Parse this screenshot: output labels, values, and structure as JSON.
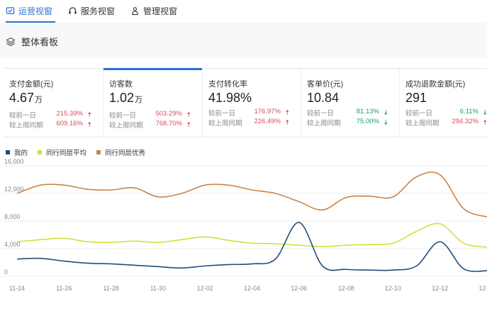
{
  "tabs": [
    {
      "label": "运营视窗",
      "icon": "ops-view-icon",
      "active": true
    },
    {
      "label": "服务视窗",
      "icon": "headset-icon",
      "active": false
    },
    {
      "label": "管理视窗",
      "icon": "manage-icon",
      "active": false
    }
  ],
  "section": {
    "title": "整体看板",
    "icon": "layers-icon"
  },
  "kpis": [
    {
      "label": "支付金额(元)",
      "value": "4.67",
      "unit": "万",
      "cmp": [
        {
          "label": "较前一日",
          "value": "215.39%",
          "dir": "up"
        },
        {
          "label": "较上周同期",
          "value": "609.16%",
          "dir": "up"
        }
      ]
    },
    {
      "label": "访客数",
      "value": "1.02",
      "unit": "万",
      "selected": true,
      "cmp": [
        {
          "label": "较前一日",
          "value": "503.29%",
          "dir": "up"
        },
        {
          "label": "较上周同期",
          "value": "768.70%",
          "dir": "up"
        }
      ]
    },
    {
      "label": "支付转化率",
      "value": "41.98%",
      "unit": "",
      "cmp": [
        {
          "label": "较前一日",
          "value": "176.97%",
          "dir": "up"
        },
        {
          "label": "较上周同期",
          "value": "226.49%",
          "dir": "up"
        }
      ]
    },
    {
      "label": "客单价(元)",
      "value": "10.84",
      "unit": "",
      "cmp": [
        {
          "label": "较前一日",
          "value": "81.13%",
          "dir": "down"
        },
        {
          "label": "较上周同期",
          "value": "75.00%",
          "dir": "down"
        }
      ]
    },
    {
      "label": "成功退款金额(元)",
      "value": "291",
      "unit": "",
      "cmp": [
        {
          "label": "较前一日",
          "value": "6.11%",
          "dir": "down"
        },
        {
          "label": "较上周同期",
          "value": "294.32%",
          "dir": "up"
        }
      ]
    }
  ],
  "colors": {
    "accent": "#2a6fd6",
    "up": "#d94c58",
    "down": "#1aa06d"
  },
  "chart_data": {
    "type": "line",
    "title": "",
    "xlabel": "",
    "ylabel": "",
    "ylim": [
      0,
      16000
    ],
    "yticks": [
      0,
      4000,
      8000,
      12000,
      16000
    ],
    "ytick_labels": [
      "0",
      "4,000",
      "8,000",
      "12,000",
      "16,000"
    ],
    "legend_position": "top-left",
    "grid": true,
    "x": [
      "11-24",
      "11-25",
      "11-26",
      "11-27",
      "11-28",
      "11-29",
      "11-30",
      "12-01",
      "12-02",
      "12-03",
      "12-04",
      "12-05",
      "12-06",
      "12-07",
      "12-08",
      "12-09",
      "12-10",
      "12-11",
      "12-12",
      "12-13",
      "12-14"
    ],
    "xtick_labels": [
      "11-24",
      "11-26",
      "11-28",
      "11-30",
      "12-02",
      "12-04",
      "12-06",
      "12-08",
      "12-10",
      "12-12",
      "12-14"
    ],
    "series": [
      {
        "name": "我的",
        "color": "#1f4e79",
        "values": [
          2500,
          2600,
          2200,
          1900,
          1800,
          1600,
          1400,
          1200,
          1500,
          1700,
          1800,
          2500,
          7800,
          1500,
          1000,
          900,
          900,
          1500,
          5000,
          1100,
          800
        ]
      },
      {
        "name": "同行同层平均",
        "color": "#d6de3a",
        "values": [
          5000,
          5300,
          5500,
          5000,
          4900,
          5100,
          4900,
          5300,
          5700,
          5200,
          4800,
          4700,
          4500,
          4300,
          4500,
          4600,
          4800,
          6500,
          7600,
          4800,
          4200
        ]
      },
      {
        "name": "同行同层优秀",
        "color": "#c9854a",
        "values": [
          12000,
          13200,
          13200,
          12600,
          12500,
          12800,
          11500,
          12000,
          13200,
          13200,
          12500,
          12000,
          10800,
          9600,
          11400,
          11600,
          11500,
          14400,
          14700,
          9800,
          8600
        ]
      }
    ]
  }
}
